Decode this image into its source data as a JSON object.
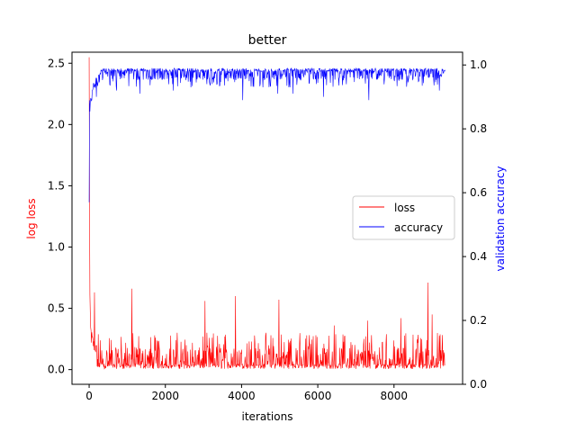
{
  "chart_data": {
    "type": "line",
    "title": "better",
    "xlabel": "iterations",
    "ylabel_left": "log loss",
    "ylabel_right": "validation accuracy",
    "xlim": [
      -450,
      9800
    ],
    "ylim_left": [
      -0.12,
      2.59
    ],
    "ylim_right": [
      0.0,
      1.04
    ],
    "x_ticks": [
      0,
      2000,
      4000,
      6000,
      8000
    ],
    "y_left_ticks": [
      0.0,
      0.5,
      1.0,
      1.5,
      2.0,
      2.5
    ],
    "y_right_ticks": [
      0.0,
      0.2,
      0.4,
      0.6,
      0.8,
      1.0
    ],
    "legend_position": "center-right",
    "grid": false,
    "series": [
      {
        "name": "loss",
        "axis": "left",
        "color": "#ff0000",
        "x_start": 0,
        "x_end": 9340,
        "step": 10,
        "start_points": [
          [
            0,
            2.48
          ],
          [
            5,
            2.2
          ],
          [
            10,
            1.6
          ],
          [
            15,
            1.1
          ],
          [
            20,
            0.6
          ],
          [
            25,
            0.45
          ],
          [
            30,
            0.38
          ],
          [
            40,
            0.33
          ],
          [
            60,
            0.28
          ],
          [
            90,
            0.24
          ],
          [
            130,
            0.2
          ],
          [
            200,
            0.17
          ]
        ],
        "baseline": 0.03,
        "typical_peak": 0.25,
        "spikes": [
          [
            140,
            0.63
          ],
          [
            1120,
            0.66
          ],
          [
            3040,
            0.56
          ],
          [
            3840,
            0.6
          ],
          [
            4980,
            0.57
          ],
          [
            6430,
            0.36
          ],
          [
            7310,
            0.4
          ],
          [
            8180,
            0.42
          ],
          [
            8890,
            0.71
          ],
          [
            9000,
            0.45
          ]
        ]
      },
      {
        "name": "accuracy",
        "axis": "right",
        "color": "#0000ff",
        "x_start": 0,
        "x_end": 9340,
        "step": 10,
        "start_points": [
          [
            0,
            0.55
          ],
          [
            5,
            0.76
          ],
          [
            10,
            0.88
          ],
          [
            15,
            0.83
          ],
          [
            25,
            0.86
          ],
          [
            40,
            0.9
          ],
          [
            70,
            0.89
          ],
          [
            110,
            0.92
          ],
          [
            200,
            0.94
          ],
          [
            300,
            0.95
          ]
        ],
        "ceiling": 0.99,
        "typical_low": 0.93,
        "dips": [
          [
            190,
            0.9
          ],
          [
            720,
            0.92
          ],
          [
            1330,
            0.91
          ],
          [
            2210,
            0.92
          ],
          [
            4030,
            0.89
          ],
          [
            4950,
            0.91
          ],
          [
            5350,
            0.91
          ],
          [
            6150,
            0.9
          ],
          [
            7340,
            0.89
          ],
          [
            9190,
            0.92
          ]
        ]
      }
    ]
  }
}
